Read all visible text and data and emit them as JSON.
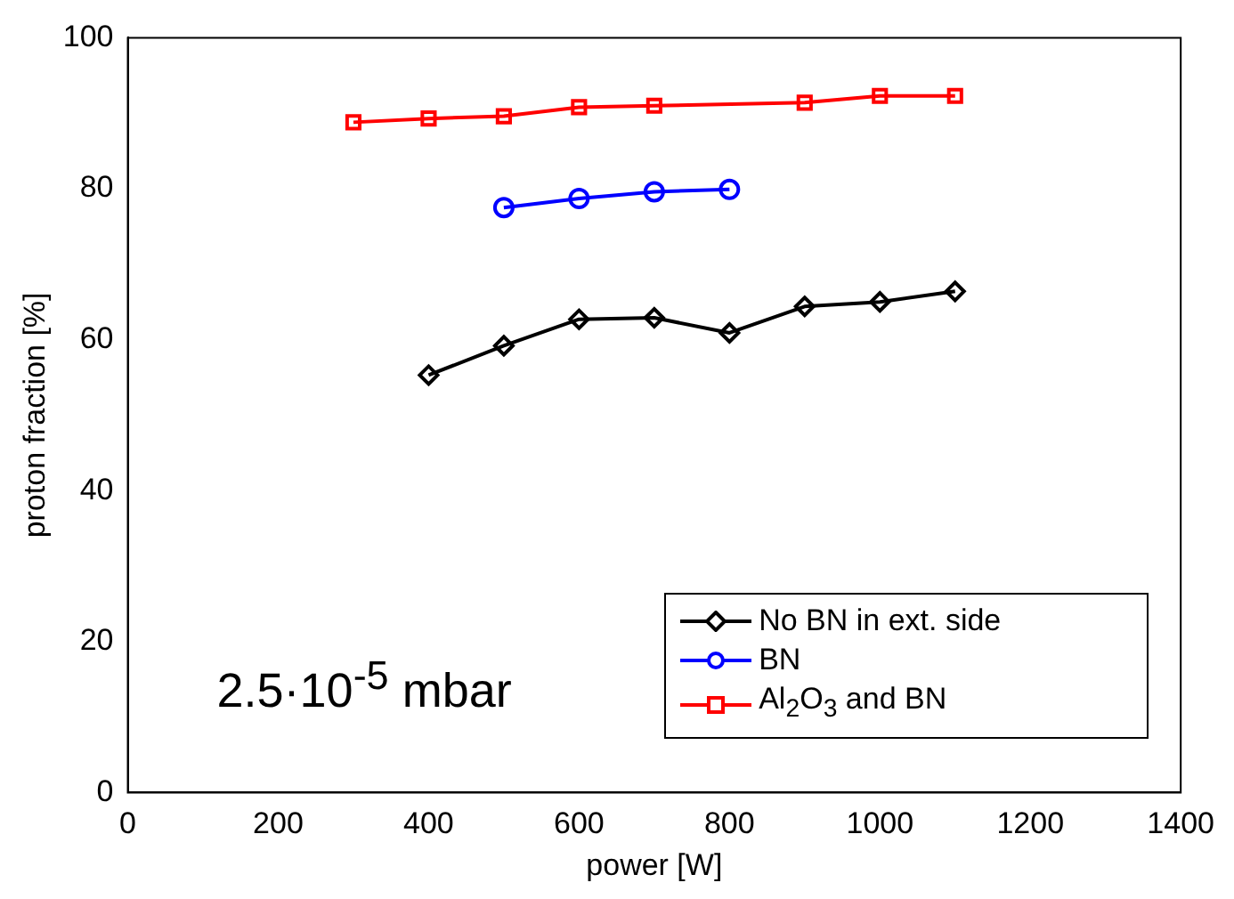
{
  "chart_data": {
    "type": "line",
    "xlabel": "power [W]",
    "ylabel": "proton fraction [%]",
    "xlim": [
      0,
      1400
    ],
    "xticks": [
      0,
      200,
      400,
      600,
      800,
      1000,
      1200,
      1400
    ],
    "ylim": [
      0,
      100
    ],
    "yticks": [
      0,
      20,
      40,
      60,
      80,
      100
    ],
    "grid": false,
    "legend": "bottom right",
    "line_style": "solid",
    "annotations": [
      "2.5·10$^{-5}$ mbar"
    ],
    "series": [
      {
        "name": "No BN in ext. side",
        "color": "#000000",
        "marker": "diamond",
        "x": [
          400,
          500,
          600,
          700,
          800,
          900,
          1000,
          1100
        ],
        "values": [
          55.3,
          59.2,
          62.7,
          62.9,
          60.9,
          64.4,
          65.0,
          66.4
        ]
      },
      {
        "name": "BN",
        "color": "#0000ff",
        "marker": "circle",
        "x": [
          500,
          600,
          700,
          800
        ],
        "values": [
          77.5,
          78.7,
          79.6,
          79.9
        ]
      },
      {
        "name": "Al$_{2}$O$_{3}$ and BN",
        "color": "#ff0000",
        "marker": "square",
        "x": [
          300,
          400,
          500,
          600,
          700,
          900,
          1000,
          1100
        ],
        "values": [
          88.8,
          89.3,
          89.6,
          90.8,
          91.0,
          91.4,
          92.3,
          92.3
        ]
      }
    ]
  }
}
